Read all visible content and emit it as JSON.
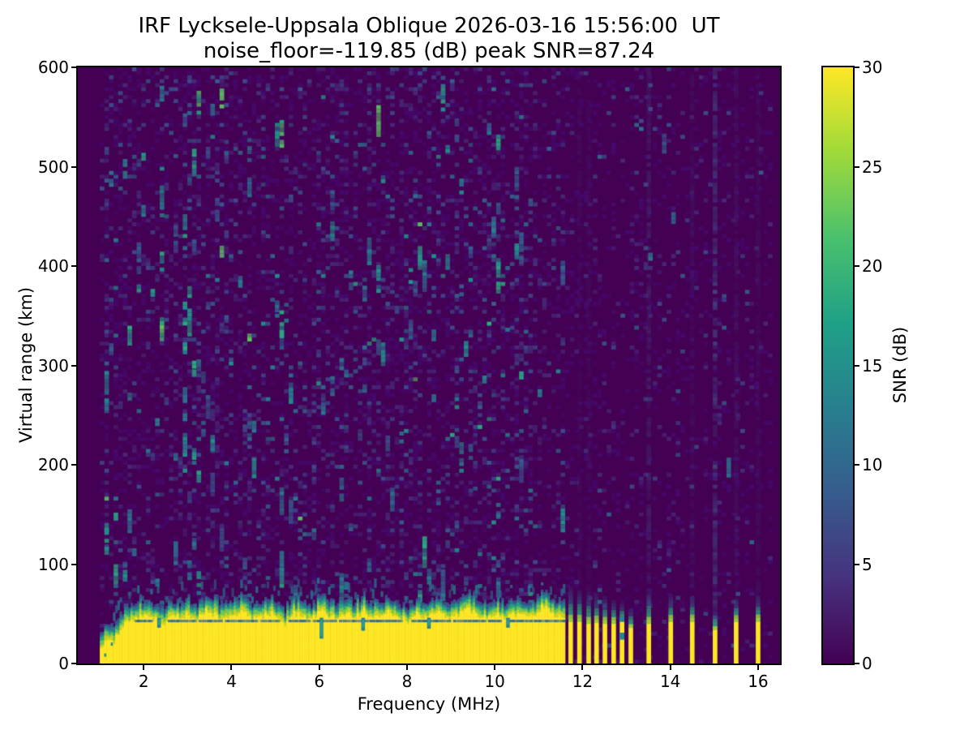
{
  "chart_data": {
    "type": "heatmap",
    "title": "IRF Lycksele-Uppsala Oblique 2026-03-16 15:56:00  UT",
    "subtitle": "noise_floor=-119.85 (dB) peak SNR=87.24",
    "xlabel": "Frequency (MHz)",
    "ylabel": "Virtual range (km)",
    "colorbar_label": "SNR (dB)",
    "noise_floor_db": -119.85,
    "peak_snr_db": 87.24,
    "xlim": [
      0.5,
      16.5
    ],
    "ylim": [
      0,
      600
    ],
    "clim": [
      0,
      30
    ],
    "xticks": [
      2,
      4,
      6,
      8,
      10,
      12,
      14,
      16
    ],
    "yticks": [
      0,
      100,
      200,
      300,
      400,
      500,
      600
    ],
    "cticks": [
      0,
      5,
      10,
      15,
      20,
      25,
      30
    ],
    "grid": false,
    "legend_position": "colorbar-right",
    "colormap": "viridis",
    "colormap_stops": [
      "#440154",
      "#46327e",
      "#365c8d",
      "#277f8e",
      "#1fa187",
      "#4ac16d",
      "#9fda3a",
      "#fde725"
    ],
    "background_value_color": "#440154",
    "data_freq_range": [
      1.0,
      16.3
    ],
    "echo_band": {
      "freq_range": [
        1.0,
        11.58
      ],
      "yellow_top_profile_km": [
        [
          1.0,
          14
        ],
        [
          1.1,
          20
        ],
        [
          1.2,
          27
        ],
        [
          1.3,
          23
        ],
        [
          1.4,
          31
        ],
        [
          1.5,
          36
        ],
        [
          1.6,
          44
        ],
        [
          1.8,
          46
        ],
        [
          2.0,
          50
        ],
        [
          2.2,
          45
        ],
        [
          2.4,
          39
        ],
        [
          2.6,
          51
        ],
        [
          2.8,
          47
        ],
        [
          3.0,
          50
        ],
        [
          3.2,
          45
        ],
        [
          3.4,
          53
        ],
        [
          3.6,
          49
        ],
        [
          3.8,
          45
        ],
        [
          4.0,
          48
        ],
        [
          4.2,
          53
        ],
        [
          4.4,
          47
        ],
        [
          4.6,
          45
        ],
        [
          4.8,
          51
        ],
        [
          5.0,
          49
        ],
        [
          5.2,
          41
        ],
        [
          5.4,
          51
        ],
        [
          5.6,
          47
        ],
        [
          5.8,
          45
        ],
        [
          6.0,
          53
        ],
        [
          6.2,
          49
        ],
        [
          6.4,
          45
        ],
        [
          6.6,
          51
        ],
        [
          6.8,
          47
        ],
        [
          7.0,
          53
        ],
        [
          7.2,
          47
        ],
        [
          7.4,
          49
        ],
        [
          7.6,
          53
        ],
        [
          7.8,
          47
        ],
        [
          8.0,
          43
        ],
        [
          8.2,
          51
        ],
        [
          8.4,
          47
        ],
        [
          8.6,
          53
        ],
        [
          8.8,
          49
        ],
        [
          9.0,
          45
        ],
        [
          9.2,
          51
        ],
        [
          9.4,
          55
        ],
        [
          9.6,
          49
        ],
        [
          9.8,
          45
        ],
        [
          10.0,
          51
        ],
        [
          10.2,
          43
        ],
        [
          10.4,
          49
        ],
        [
          10.6,
          53
        ],
        [
          10.8,
          47
        ],
        [
          11.0,
          55
        ],
        [
          11.1,
          58
        ],
        [
          11.2,
          52
        ],
        [
          11.3,
          50
        ],
        [
          11.45,
          48
        ],
        [
          11.58,
          45
        ]
      ],
      "dark_line_km": [
        41.5,
        44
      ],
      "notches_f_km": [
        [
          2.35,
          36
        ],
        [
          6.05,
          25
        ],
        [
          7.0,
          33
        ],
        [
          8.5,
          35
        ],
        [
          10.3,
          36
        ]
      ]
    },
    "stripes_f_yellowtop_halotop_km": [
      [
        11.73,
        42,
        78
      ],
      [
        11.93,
        42,
        74
      ],
      [
        12.14,
        40,
        72
      ],
      [
        12.32,
        41,
        70
      ],
      [
        12.51,
        40,
        68
      ],
      [
        12.71,
        40,
        64
      ],
      [
        12.9,
        42,
        60
      ],
      [
        13.1,
        36,
        55
      ],
      [
        13.51,
        40,
        72
      ],
      [
        14.01,
        42,
        70
      ],
      [
        14.5,
        42,
        68
      ],
      [
        15.02,
        34,
        52
      ],
      [
        15.5,
        42,
        66
      ],
      [
        16.0,
        42,
        68
      ]
    ],
    "broken_stripes_f": [
      12.9
    ],
    "faint_full_height_columns_f_alpha": [
      [
        11.93,
        0.1
      ],
      [
        12.14,
        0.1
      ],
      [
        13.51,
        0.3
      ],
      [
        14.5,
        0.13
      ],
      [
        15.02,
        0.55
      ],
      [
        15.5,
        0.16
      ],
      [
        16.0,
        0.12
      ]
    ],
    "speckle": {
      "seed": 1337,
      "cell_w_mhz": 0.105,
      "cell_h_km": 4.0,
      "dense_region_max_mhz": 11.6,
      "palette": [
        "#45096b",
        "#482878",
        "#3e4a89",
        "#355e8d",
        "#2a788e",
        "#21918c",
        "#28ae80",
        "#5ec962"
      ],
      "hot_columns_mhz": [
        1.1,
        1.5,
        1.85,
        2.35,
        2.7,
        2.95,
        3.15,
        3.7,
        4.35,
        5.1,
        6.0,
        6.5,
        7.3,
        8.3,
        8.8,
        9.3,
        10.0,
        10.5
      ]
    }
  }
}
